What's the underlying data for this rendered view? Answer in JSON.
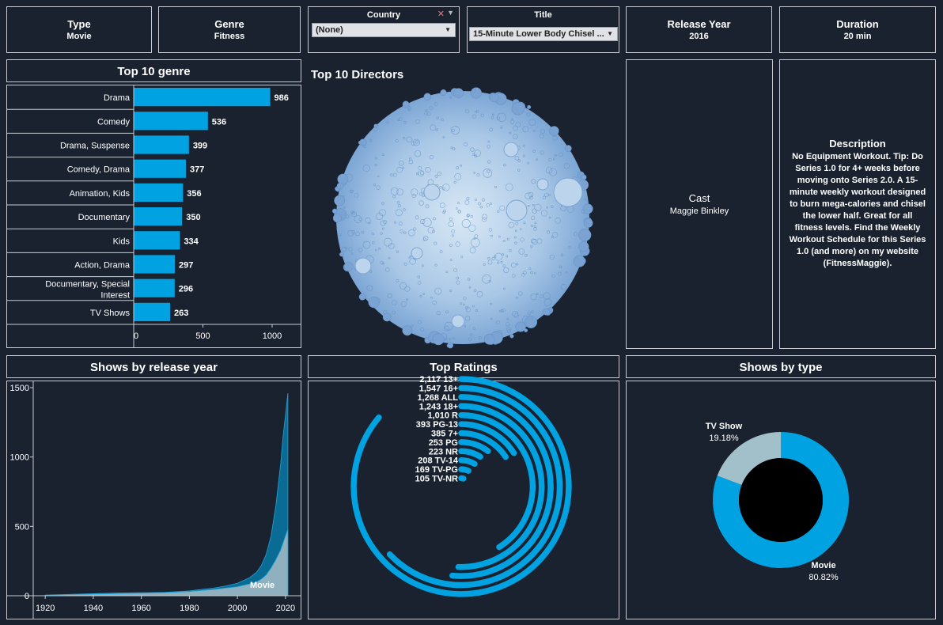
{
  "filters": {
    "type": {
      "label": "Type",
      "value": "Movie"
    },
    "genre": {
      "label": "Genre",
      "value": "Fitness"
    },
    "country": {
      "label": "Country",
      "value": "(None)"
    },
    "title": {
      "label": "Title",
      "value": "15-Minute Lower Body Chisel ..."
    },
    "release_year": {
      "label": "Release Year",
      "value": "2016"
    },
    "duration": {
      "label": "Duration",
      "value": "20 min"
    }
  },
  "panels": {
    "genre": "Top 10 genre",
    "directors": "Top 10 Directors",
    "release": "Shows by release year",
    "ratings": "Top Ratings",
    "type": "Shows by type"
  },
  "cast": {
    "label": "Cast",
    "value": "Maggie Binkley"
  },
  "description": {
    "label": "Description",
    "value": "No Equipment Workout. Tip: Do Series 1.0 for 4+ weeks before moving onto Series 2.0. A 15-minute weekly workout designed to burn mega-calories and chisel the lower half. Great for all fitness levels. Find the Weekly Workout Schedule for this Series 1.0 (and more) on my website (FitnessMaggie)."
  },
  "colors": {
    "accent": "#00a2e2",
    "background": "#1a2230",
    "tv_show": "#a2c0c9",
    "border": "#c8ccd2"
  },
  "chart_data": [
    {
      "type": "bar",
      "title": "Top 10 genre",
      "orientation": "horizontal",
      "categories": [
        "Drama",
        "Comedy",
        "Drama, Suspense",
        "Comedy, Drama",
        "Animation, Kids",
        "Documentary",
        "Kids",
        "Action, Drama",
        "Documentary, Special Interest",
        "TV Shows"
      ],
      "values": [
        986,
        536,
        399,
        377,
        356,
        350,
        334,
        297,
        296,
        263
      ],
      "xlim": [
        0,
        1200
      ],
      "xticks": [
        0,
        500,
        1000
      ]
    },
    {
      "type": "area",
      "title": "Shows by release year",
      "yticks": [
        0,
        500,
        1000,
        1500
      ],
      "xticks": [
        1920,
        1940,
        1960,
        1980,
        2000,
        2020
      ],
      "ylim": [
        0,
        1500
      ],
      "xlim": [
        1915,
        2024
      ],
      "annotation": "Movie",
      "series": [
        {
          "name": "Movie",
          "x": [
            1920,
            1930,
            1940,
            1950,
            1960,
            1970,
            1980,
            1990,
            1995,
            2000,
            2005,
            2008,
            2010,
            2012,
            2014,
            2016,
            2018,
            2019,
            2020,
            2021
          ],
          "values": [
            3,
            8,
            12,
            15,
            18,
            22,
            30,
            45,
            55,
            65,
            85,
            100,
            120,
            150,
            200,
            260,
            330,
            380,
            430,
            480
          ]
        },
        {
          "name": "",
          "x": [
            1920,
            1930,
            1940,
            1950,
            1960,
            1970,
            1980,
            1990,
            1995,
            2000,
            2005,
            2008,
            2010,
            2012,
            2014,
            2016,
            2018,
            2019,
            2020,
            2021
          ],
          "values": [
            5,
            10,
            15,
            20,
            22,
            25,
            35,
            55,
            70,
            90,
            130,
            170,
            220,
            300,
            430,
            650,
            950,
            1150,
            1300,
            1460
          ]
        }
      ]
    },
    {
      "type": "radial-bar",
      "title": "Top Ratings",
      "categories": [
        "13+",
        "16+",
        "ALL",
        "18+",
        "R",
        "PG-13",
        "7+",
        "PG",
        "NR",
        "TV-14",
        "TV-PG",
        "TV-NR"
      ],
      "value_labels": [
        "2,117",
        "1,547",
        "1,268",
        "1,243",
        "1,010",
        "393",
        "385",
        "253",
        "223",
        "208",
        "169",
        "105"
      ],
      "values": [
        2117,
        1547,
        1268,
        1243,
        1010,
        393,
        385,
        253,
        223,
        208,
        169,
        105
      ]
    },
    {
      "type": "pie",
      "title": "Shows by type",
      "categories": [
        "Movie",
        "TV Show"
      ],
      "values": [
        80.82,
        19.18
      ],
      "labels": [
        "80.82%",
        "19.18%"
      ]
    }
  ]
}
